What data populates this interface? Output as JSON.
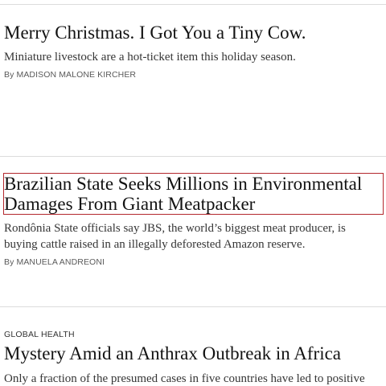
{
  "stories": [
    {
      "kicker": "",
      "headline": "Merry Christmas. I Got You a Tiny Cow.",
      "summary": "Miniature livestock are a hot-ticket item this holiday season.",
      "byline": "By MADISON MALONE KIRCHER"
    },
    {
      "kicker": "",
      "headline": "Brazilian State Seeks Millions in Environmental Damages From Giant Meatpacker",
      "summary": "Rondônia State officials say JBS, the world’s biggest meat producer, is buying cattle raised in an illegally deforested Amazon reserve.",
      "byline": "By MANUELA ANDREONI"
    },
    {
      "kicker": "GLOBAL HEALTH",
      "headline": "Mystery Amid an Anthrax Outbreak in Africa",
      "summary": "Only a fraction of the presumed cases in five countries have led to positive",
      "byline": ""
    }
  ],
  "colors": {
    "focus_outline": "#b3272d",
    "divider": "#dcdcdc",
    "headline_text": "#121212"
  }
}
